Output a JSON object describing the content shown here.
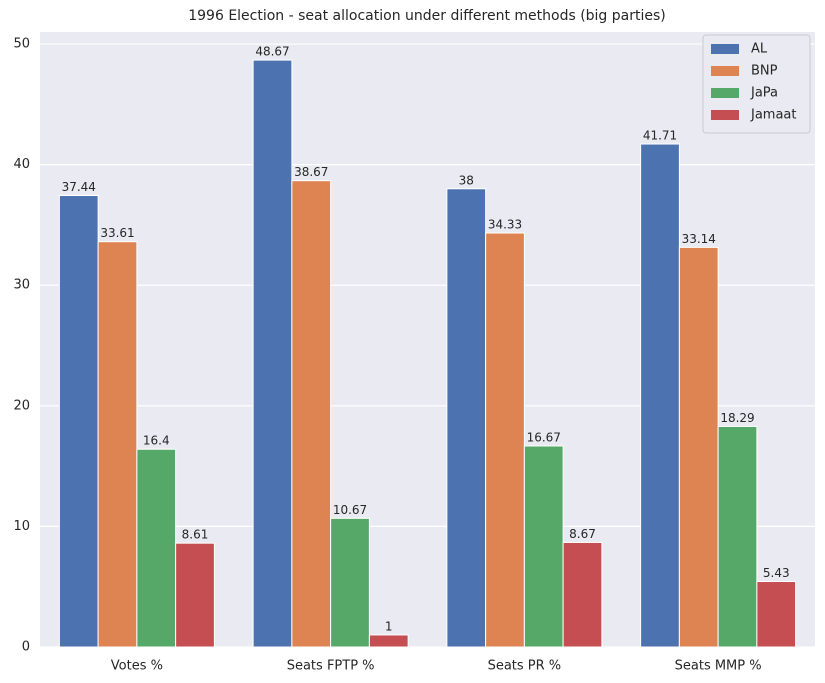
{
  "chart_data": {
    "type": "bar",
    "title": "1996 Election - seat allocation under different methods (big parties)",
    "categories": [
      "Votes %",
      "Seats FPTP %",
      "Seats PR %",
      "Seats MMP %"
    ],
    "series": [
      {
        "name": "AL",
        "color": "#4c72b0",
        "values": [
          37.44,
          48.67,
          38,
          41.71
        ]
      },
      {
        "name": "BNP",
        "color": "#dd8452",
        "values": [
          33.61,
          38.67,
          34.33,
          33.14
        ]
      },
      {
        "name": "JaPa",
        "color": "#55a868",
        "values": [
          16.4,
          10.67,
          16.67,
          18.29
        ]
      },
      {
        "name": "Jamaat",
        "color": "#c44e52",
        "values": [
          8.61,
          1,
          8.67,
          5.43
        ]
      }
    ],
    "ylim": [
      0,
      51
    ],
    "yticks": [
      0,
      10,
      20,
      30,
      40,
      50
    ],
    "grid": true,
    "legend": "upper right"
  }
}
